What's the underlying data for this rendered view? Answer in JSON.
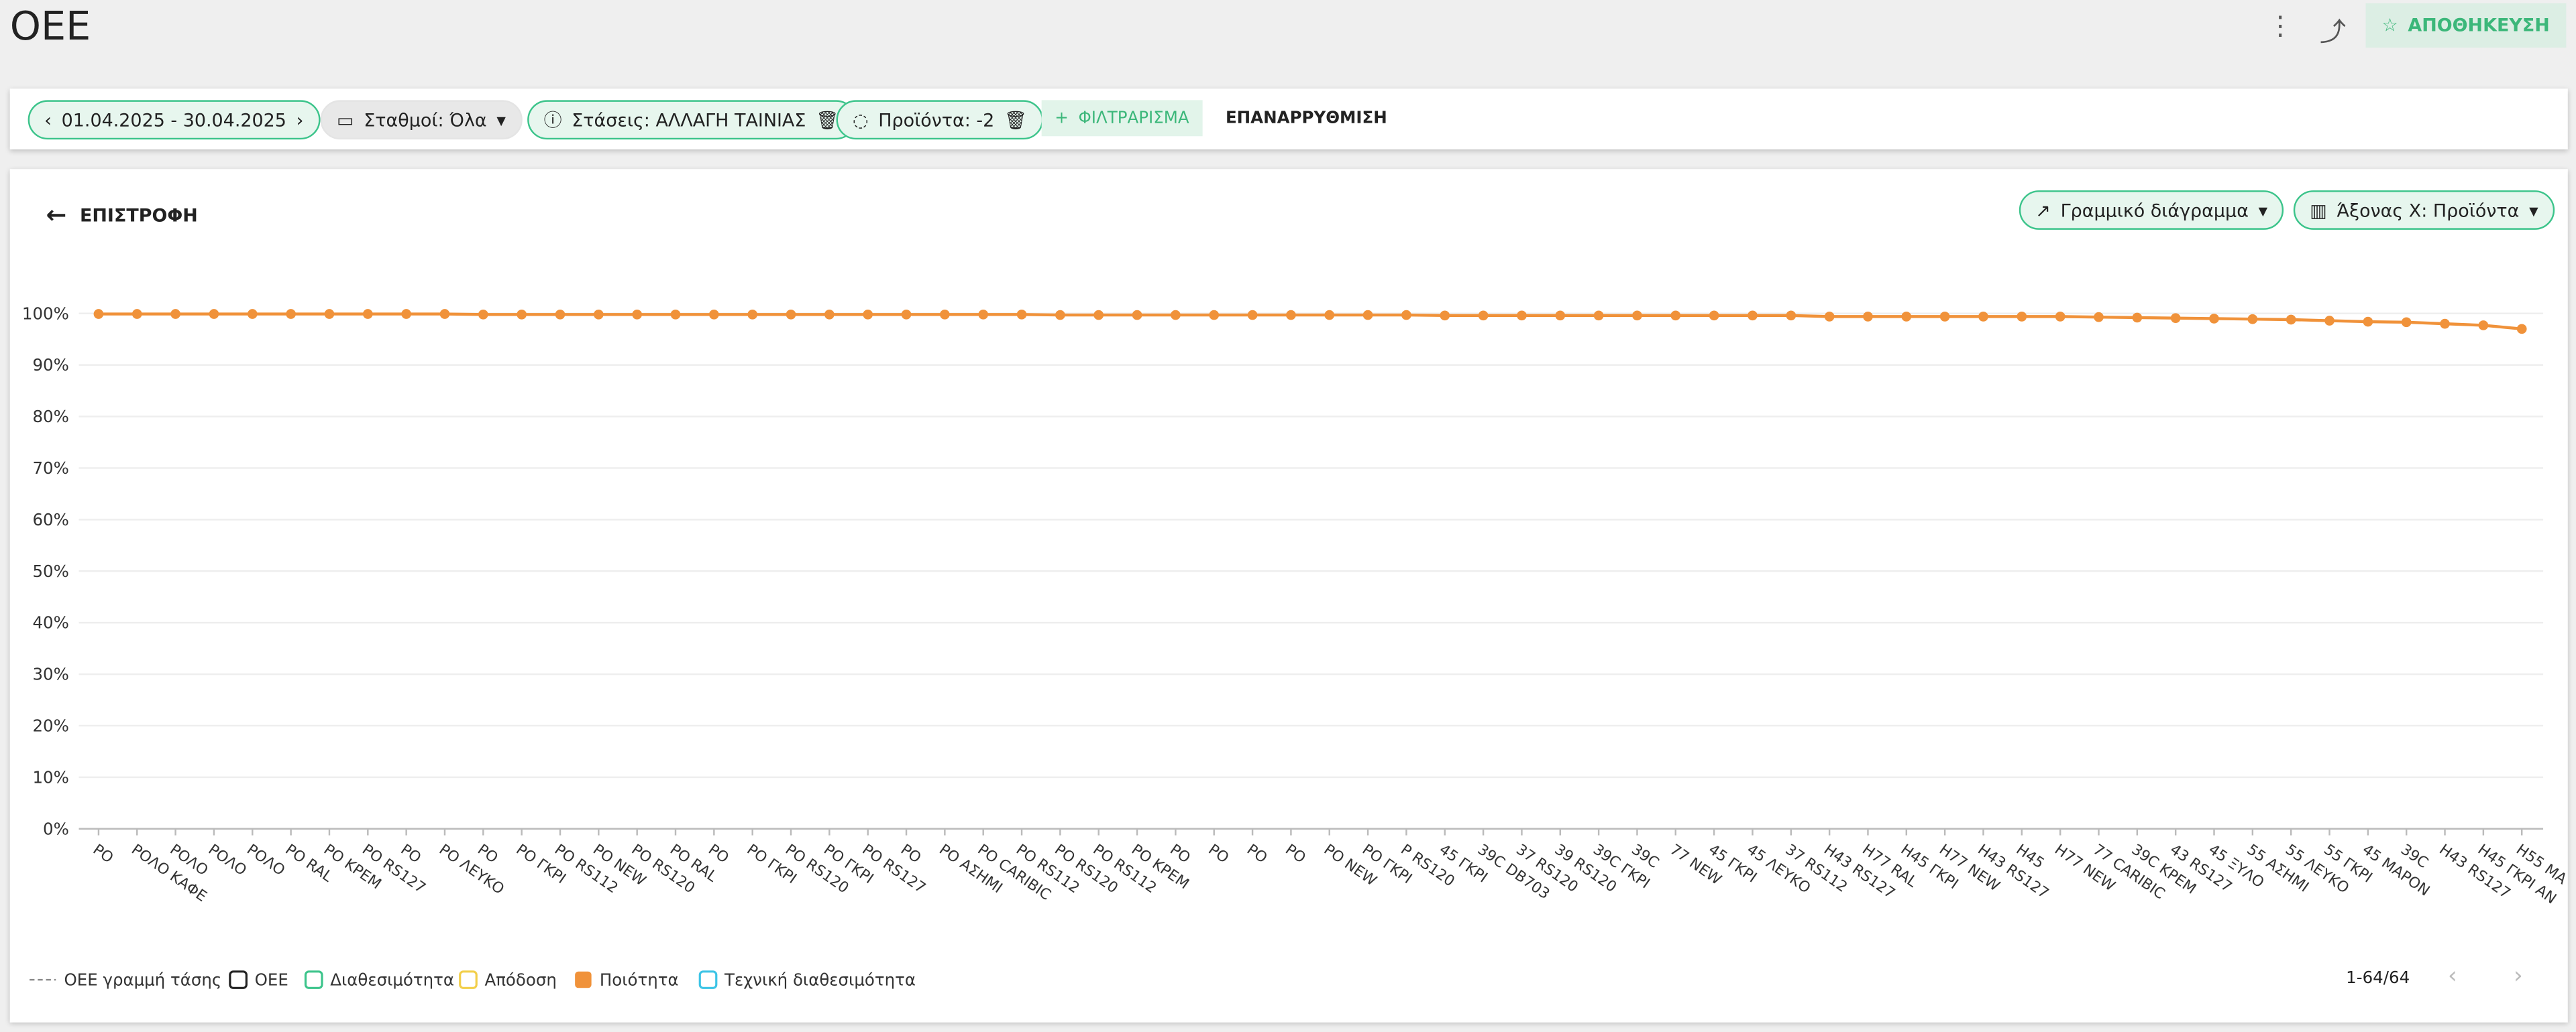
{
  "header": {
    "title": "OEE",
    "save": "ΑΠΟΘΗΚΕΥΣΗ"
  },
  "filters": {
    "date": "01.04.2025 - 30.04.2025",
    "stations": "Σταθμοί: Όλα",
    "stops": "Στάσεις: ΑΛΛΑΓΗ ΤΑΙΝΙΑΣ",
    "products": "Προϊόντα: -2",
    "filter": "ΦΙΛΤΡΑΡΙΣΜΑ",
    "reset": "ΕΠΑΝΑΡΡΥΘΜΙΣΗ"
  },
  "toolbar": {
    "back": "ΕΠΙΣΤΡΟΦΗ",
    "chart_type": "Γραμμικό διάγραμμα",
    "x_axis": "Άξονας Χ: Προϊόντα"
  },
  "pagination": "1-64/64",
  "chart_data": {
    "type": "line",
    "categories": [
      "ΡΟ",
      "ΡΟΛΟ ΚΑΦΕ",
      "ΡΟΛΟ",
      "ΡΟΛΟ",
      "ΡΟΛΟ",
      "ΡΟ RAL",
      "ΡΟ ΚΡΕΜ",
      "ΡΟ RS127",
      "ΡΟ",
      "ΡΟ ΛΕΥΚΟ",
      "ΡΟ",
      "ΡΟ ΓΚΡΙ",
      "ΡΟ RS112",
      "ΡΟ NEW",
      "ΡΟ RS120",
      "ΡΟ RAL",
      "ΡΟ",
      "ΡΟ ΓΚΡΙ",
      "ΡΟ RS120",
      "ΡΟ ΓΚΡΙ",
      "ΡΟ RS127",
      "ΡΟ",
      "ΡΟ ΑΣΗΜΙ",
      "ΡΟ CARIBIC",
      "ΡΟ RS112",
      "ΡΟ RS120",
      "ΡΟ RS112",
      "ΡΟ ΚΡΕΜ",
      "ΡΟ",
      "ΡΟ",
      "ΡΟ",
      "ΡΟ",
      "ΡΟ NEW",
      "ΡΟ ΓΚΡΙ",
      "Ρ RS120",
      "45 ΓΚΡΙ",
      "39C DB703",
      "37 RS120",
      "39 RS120",
      "39C ΓΚΡΙ",
      "39C",
      "77 NEW",
      "45 ΓΚΡΙ",
      "45 ΛΕΥΚΟ",
      "37 RS112",
      "H43 RS127",
      "H77 RAL",
      "H45 ΓΚΡΙ",
      "H77 NEW",
      "H43 RS127",
      "H45",
      "H77 NEW",
      "77 CARIBIC",
      "39C ΚΡΕΜ",
      "43 RS127",
      "45 ΞΥΛΟ",
      "55 ΑΣΗΜΙ",
      "55 ΛΕΥΚΟ",
      "55 ΓΚΡΙ",
      "45 ΜΑΡΟΝ",
      "39C",
      "H43 RS127",
      "H45 ΓΚΡΙ ΑΝ",
      "H55 ΜΑ"
    ],
    "series": [
      {
        "name": "Ποιότητα",
        "color": "#f0923a",
        "values": [
          99.9,
          99.9,
          99.9,
          99.9,
          99.9,
          99.9,
          99.9,
          99.9,
          99.9,
          99.9,
          99.8,
          99.8,
          99.8,
          99.8,
          99.8,
          99.8,
          99.8,
          99.8,
          99.8,
          99.8,
          99.8,
          99.8,
          99.8,
          99.8,
          99.8,
          99.7,
          99.7,
          99.7,
          99.7,
          99.7,
          99.7,
          99.7,
          99.7,
          99.7,
          99.7,
          99.6,
          99.6,
          99.6,
          99.6,
          99.6,
          99.6,
          99.6,
          99.6,
          99.6,
          99.6,
          99.4,
          99.4,
          99.4,
          99.4,
          99.4,
          99.4,
          99.4,
          99.3,
          99.2,
          99.1,
          99.0,
          98.9,
          98.8,
          98.6,
          98.4,
          98.3,
          98.0,
          97.7,
          97.0
        ]
      }
    ],
    "other_legend": [
      {
        "name": "OEE γραμμή τάσης",
        "color": "#888888",
        "style": "dashed"
      },
      {
        "name": "OEE",
        "color": "#222222",
        "style": "box"
      },
      {
        "name": "Διαθεσιμότητα",
        "color": "#3cc48b",
        "style": "box"
      },
      {
        "name": "Απόδοση",
        "color": "#f2cf4a",
        "style": "box"
      },
      {
        "name": "Τεχνική διαθεσιμότητα",
        "color": "#3cc4e6",
        "style": "box"
      }
    ],
    "ylim": [
      0,
      100
    ],
    "yticks": [
      {
        "value": 0,
        "label": "0%"
      },
      {
        "value": 10,
        "label": "10%"
      },
      {
        "value": 20,
        "label": "20%"
      },
      {
        "value": 30,
        "label": "30%"
      },
      {
        "value": 40,
        "label": "40%"
      },
      {
        "value": 50,
        "label": "50%"
      },
      {
        "value": 60,
        "label": "60%"
      },
      {
        "value": 70,
        "label": "70%"
      },
      {
        "value": 80,
        "label": "80%"
      },
      {
        "value": 90,
        "label": "90%"
      },
      {
        "value": 100,
        "label": "100%"
      }
    ],
    "grid": true
  }
}
